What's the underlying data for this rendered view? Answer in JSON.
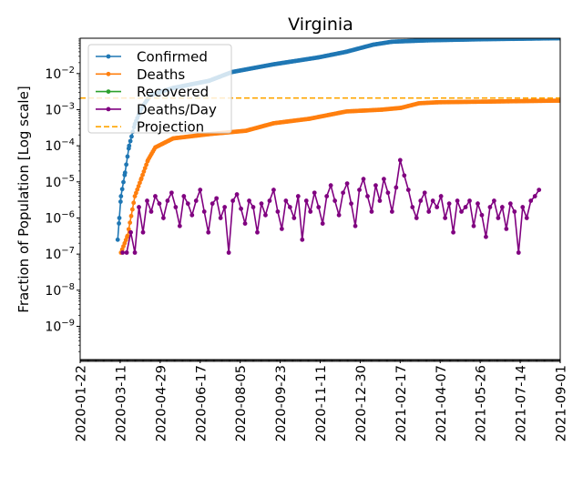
{
  "chart_data": {
    "type": "line",
    "title": "Virginia",
    "xlabel": "",
    "ylabel": "Fraction of Population [Log scale]",
    "yscale": "log",
    "ylim": [
      1.2e-10,
      0.095
    ],
    "x_start_date": "2020-01-22",
    "xlim_days": [
      0,
      588
    ],
    "x_tick_labels": [
      "2020-01-22",
      "2020-03-11",
      "2020-04-29",
      "2020-06-17",
      "2020-08-05",
      "2020-09-23",
      "2020-11-11",
      "2020-12-30",
      "2021-02-17",
      "2021-04-07",
      "2021-05-26",
      "2021-07-14",
      "2021-09-01"
    ],
    "y_ticks": [
      {
        "exp": -2,
        "label_base": "10",
        "label_exp": "−2"
      },
      {
        "exp": -3,
        "label_base": "10",
        "label_exp": "−3"
      },
      {
        "exp": -4,
        "label_base": "10",
        "label_exp": "−4"
      },
      {
        "exp": -5,
        "label_base": "10",
        "label_exp": "−5"
      },
      {
        "exp": -6,
        "label_base": "10",
        "label_exp": "−6"
      },
      {
        "exp": -7,
        "label_base": "10",
        "label_exp": "−7"
      },
      {
        "exp": -8,
        "label_base": "10",
        "label_exp": "−8"
      },
      {
        "exp": -9,
        "label_base": "10",
        "label_exp": "−9"
      }
    ],
    "legend_position": "top-left",
    "series": [
      {
        "name": "Confirmed",
        "color": "#1f77b4",
        "style": "line-marker",
        "days": [
          46,
          48,
          50,
          55,
          60,
          67,
          75,
          86,
          114,
          158,
          186,
          237,
          292,
          326,
          359,
          382,
          426,
          493,
          588
        ],
        "values": [
          2.5e-07,
          1e-06,
          4e-06,
          1.8e-05,
          0.0001,
          0.0004,
          0.0011,
          0.0025,
          0.004,
          0.0063,
          0.011,
          0.018,
          0.028,
          0.04,
          0.063,
          0.076,
          0.083,
          0.089,
          0.095
        ]
      },
      {
        "name": "Deaths",
        "color": "#ff7f0e",
        "style": "line-marker",
        "days": [
          50,
          58,
          67,
          75,
          83,
          92,
          114,
          158,
          203,
          237,
          281,
          326,
          370,
          393,
          415,
          438,
          588
        ],
        "values": [
          1.1e-07,
          3.2e-07,
          4e-06,
          1.25e-05,
          4e-05,
          9e-05,
          0.00016,
          0.00021,
          0.00026,
          0.00042,
          0.00056,
          0.00089,
          0.001,
          0.00112,
          0.0015,
          0.0016,
          0.00178
        ]
      },
      {
        "name": "Recovered",
        "color": "#2ca02c",
        "style": "line-marker",
        "days": [],
        "values": []
      },
      {
        "name": "Deaths/Day",
        "color": "#800080",
        "style": "line-marker",
        "days_start": 52,
        "days_step": 5,
        "values": [
          1.1e-07,
          1.1e-07,
          4e-07,
          1.1e-07,
          2e-06,
          4e-07,
          3e-06,
          1.5e-06,
          4e-06,
          2.5e-06,
          1e-06,
          3e-06,
          5e-06,
          2e-06,
          6e-07,
          4e-06,
          2.5e-06,
          1.2e-06,
          3e-06,
          6e-06,
          1.5e-06,
          4e-07,
          2.5e-06,
          3.5e-06,
          1e-06,
          2e-06,
          1.1e-07,
          3e-06,
          4.5e-06,
          1.8e-06,
          7e-07,
          3e-06,
          2e-06,
          4e-07,
          2.5e-06,
          1.2e-06,
          3e-06,
          6e-06,
          1.5e-06,
          5e-07,
          3e-06,
          2e-06,
          1e-06,
          4e-06,
          2.5e-07,
          3e-06,
          1.5e-06,
          5e-06,
          2e-06,
          7e-07,
          4e-06,
          8e-06,
          3e-06,
          1.2e-06,
          5e-06,
          9e-06,
          2.5e-06,
          6e-07,
          6e-06,
          1.2e-05,
          4e-06,
          1.5e-06,
          8e-06,
          3e-06,
          1.2e-05,
          5e-06,
          1.5e-06,
          7e-06,
          4e-05,
          1.5e-05,
          6e-06,
          2e-06,
          1e-06,
          3e-06,
          5e-06,
          1.5e-06,
          3e-06,
          2e-06,
          4e-06,
          1e-06,
          2.5e-06,
          4e-07,
          3e-06,
          1.5e-06,
          2e-06,
          3e-06,
          6e-07,
          2.5e-06,
          1.2e-06,
          3e-07,
          2e-06,
          3e-06,
          1e-06,
          2e-06,
          5e-07,
          2.5e-06,
          1.5e-06,
          1.1e-07,
          2e-06,
          1e-06,
          3e-06,
          4e-06,
          6e-06
        ]
      },
      {
        "name": "Projection",
        "color": "#ffa500",
        "style": "dashed",
        "constant": 0.0021
      }
    ]
  }
}
